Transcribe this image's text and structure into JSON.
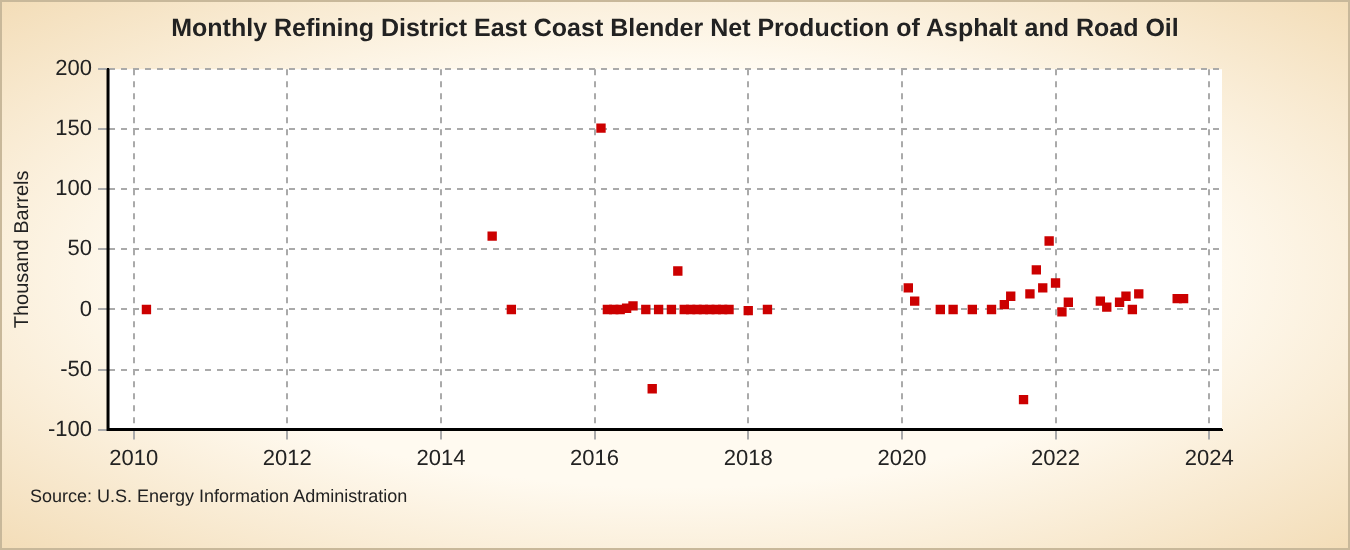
{
  "chart_data": {
    "type": "scatter",
    "title": "Monthly Refining District East Coast Blender Net Production of Asphalt and Road Oil",
    "ylabel": "Thousand Barrels",
    "x": [
      "2010-03",
      "2014-09",
      "2014-12",
      "2016-02",
      "2016-03",
      "2016-04",
      "2016-05",
      "2016-06",
      "2016-07",
      "2016-09",
      "2016-10",
      "2016-11",
      "2017-01",
      "2017-02",
      "2017-03",
      "2017-04",
      "2017-05",
      "2017-06",
      "2017-07",
      "2017-08",
      "2017-09",
      "2017-10",
      "2018-01",
      "2018-04",
      "2020-02",
      "2020-03",
      "2020-07",
      "2020-09",
      "2020-12",
      "2021-03",
      "2021-05",
      "2021-06",
      "2021-08",
      "2021-09",
      "2021-10",
      "2021-11",
      "2021-12",
      "2022-01",
      "2022-02",
      "2022-03",
      "2022-08",
      "2022-09",
      "2022-11",
      "2022-12",
      "2023-01",
      "2023-02",
      "2023-08",
      "2023-09"
    ],
    "series": [
      {
        "color": "#cc0000",
        "values": [
          0,
          61,
          0,
          151,
          0,
          0,
          0,
          1,
          3,
          0,
          -66,
          0,
          0,
          32,
          0,
          0,
          0,
          0,
          0,
          0,
          0,
          0,
          -1,
          0,
          18,
          7,
          0,
          0,
          0,
          0,
          4,
          11,
          -75,
          13,
          33,
          18,
          57,
          22,
          -2,
          6,
          7,
          2,
          6,
          11,
          0,
          13,
          9,
          9
        ]
      }
    ],
    "xlim": [
      "2009-09",
      "2024-03"
    ],
    "xticks": [
      "2010",
      "2012",
      "2014",
      "2016",
      "2018",
      "2020",
      "2022",
      "2024"
    ],
    "ylim": [
      -100,
      200
    ],
    "yticks": [
      -100,
      -50,
      0,
      50,
      100,
      150,
      200
    ],
    "grid": true,
    "legend": false,
    "marker": "square",
    "annotations": [
      "Source: U.S. Energy Information Administration"
    ]
  }
}
